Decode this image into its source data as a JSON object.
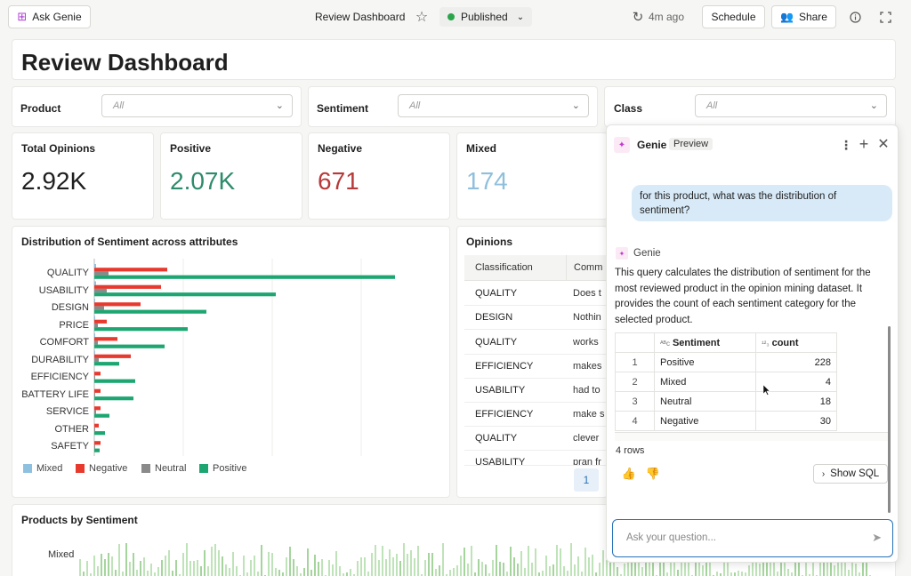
{
  "header": {
    "ask_genie": "Ask Genie",
    "title": "Review Dashboard",
    "status": "Published",
    "refresh": "4m ago",
    "schedule": "Schedule",
    "share": "Share"
  },
  "page_title": "Review Dashboard",
  "filters": [
    {
      "label": "Product",
      "value": "All"
    },
    {
      "label": "Sentiment",
      "value": "All"
    },
    {
      "label": "Class",
      "value": "All"
    }
  ],
  "kpis": [
    {
      "label": "Total Opinions",
      "value": "2.92K",
      "color": "#1f1f1f"
    },
    {
      "label": "Positive",
      "value": "2.07K",
      "color": "#2e8b6b"
    },
    {
      "label": "Negative",
      "value": "671",
      "color": "#b73a3a"
    },
    {
      "label": "Mixed",
      "value": "174",
      "color": "#8fbfdd"
    }
  ],
  "sentiment_chart": {
    "title": "Distribution of Sentiment across attributes",
    "colors": {
      "Mixed": "#8ec1e0",
      "Negative": "#e8392e",
      "Neutral": "#8a8a8a",
      "Positive": "#1ea672"
    },
    "legend": [
      "Mixed",
      "Negative",
      "Neutral",
      "Positive"
    ]
  },
  "chart_data": {
    "type": "bar",
    "title": "Distribution of Sentiment across attributes",
    "categories": [
      "QUALITY",
      "USABILITY",
      "DESIGN",
      "PRICE",
      "COMFORT",
      "DURABILITY",
      "EFFICIENCY",
      "BATTERY LIFE",
      "SERVICE",
      "OTHER",
      "SAFETY"
    ],
    "series": [
      {
        "name": "Mixed",
        "values": [
          2,
          2,
          1,
          1,
          1,
          1,
          0,
          0,
          0,
          0,
          0
        ]
      },
      {
        "name": "Negative",
        "values": [
          82,
          75,
          52,
          14,
          26,
          41,
          7,
          7,
          7,
          5,
          7
        ]
      },
      {
        "name": "Neutral",
        "values": [
          16,
          14,
          11,
          4,
          4,
          5,
          1,
          1,
          2,
          1,
          1
        ]
      },
      {
        "name": "Positive",
        "values": [
          338,
          204,
          126,
          105,
          79,
          28,
          46,
          44,
          17,
          12,
          6
        ]
      }
    ],
    "xlim": [
      0,
      390
    ]
  },
  "opinions": {
    "title": "Opinions",
    "columns": [
      "Classification",
      "Comm"
    ],
    "rows": [
      [
        "QUALITY",
        "Does t"
      ],
      [
        "DESIGN",
        "Nothin"
      ],
      [
        "QUALITY",
        "works"
      ],
      [
        "EFFICIENCY",
        "makes"
      ],
      [
        "USABILITY",
        "had to"
      ],
      [
        "EFFICIENCY",
        "make s"
      ],
      [
        "QUALITY",
        "clever"
      ],
      [
        "USABILITY",
        "pran fr"
      ]
    ],
    "page": "1"
  },
  "products": {
    "title": "Products by Sentiment",
    "row_label": "Mixed"
  },
  "genie": {
    "title": "Genie",
    "badge": "Preview",
    "user_message": "for this product, what was the distribution of sentiment?",
    "assistant_name": "Genie",
    "response": "This query calculates the distribution of sentiment for the most reviewed product in the opinion mining dataset. It provides the count of each sentiment category for the selected product.",
    "table": {
      "columns": [
        "Sentiment",
        "count"
      ],
      "rows": [
        [
          "1",
          "Positive",
          "228"
        ],
        [
          "2",
          "Mixed",
          "4"
        ],
        [
          "3",
          "Neutral",
          "18"
        ],
        [
          "4",
          "Negative",
          "30"
        ]
      ]
    },
    "row_count": "4 rows",
    "show_sql": "Show SQL",
    "input_placeholder": "Ask your question..."
  }
}
